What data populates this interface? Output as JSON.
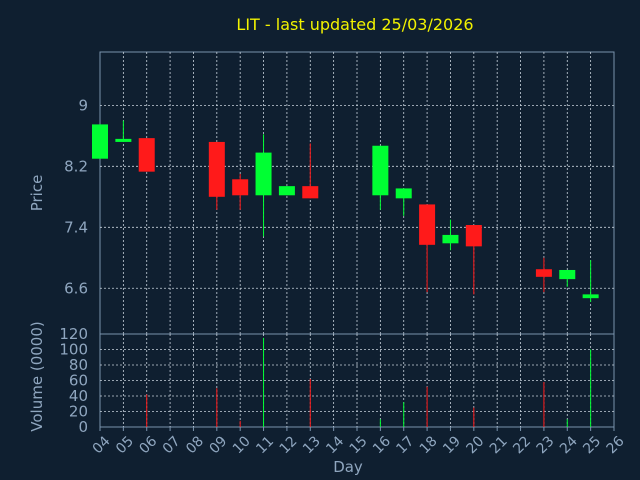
{
  "chart_data": {
    "type": "candlestick",
    "title": "LIT - last updated 25/03/2026",
    "xlabel": "Day",
    "price_panel": {
      "ylabel": "Price",
      "yticks": [
        "6.6",
        "7.4",
        "8.2",
        "9"
      ],
      "ylim": [
        6.0,
        9.7
      ],
      "grid": true
    },
    "volume_panel": {
      "ylabel": "Volume (0000)",
      "yticks": [
        "0",
        "20",
        "40",
        "60",
        "80",
        "100",
        "120"
      ],
      "ylim": [
        0,
        120
      ],
      "grid": true
    },
    "x_ticks": [
      "04",
      "05",
      "06",
      "07",
      "08",
      "09",
      "10",
      "11",
      "12",
      "13",
      "14",
      "15",
      "16",
      "17",
      "18",
      "19",
      "20",
      "21",
      "22",
      "23",
      "24",
      "25",
      "26"
    ],
    "candles": [
      {
        "day": 4,
        "open": 8.3,
        "close": 8.75,
        "high": 8.75,
        "low": 8.3,
        "volume": 0
      },
      {
        "day": 5,
        "open": 8.52,
        "close": 8.56,
        "high": 8.8,
        "low": 8.52,
        "volume": 0
      },
      {
        "day": 6,
        "open": 8.57,
        "close": 8.13,
        "high": 8.57,
        "low": 8.13,
        "volume": 42
      },
      {
        "day": 9,
        "open": 8.52,
        "close": 7.8,
        "high": 8.52,
        "low": 7.63,
        "volume": 50
      },
      {
        "day": 10,
        "open": 8.03,
        "close": 7.82,
        "high": 8.1,
        "low": 7.63,
        "volume": 8
      },
      {
        "day": 11,
        "open": 7.82,
        "close": 8.38,
        "high": 8.62,
        "low": 7.28,
        "volume": 115
      },
      {
        "day": 12,
        "open": 7.82,
        "close": 7.94,
        "high": 7.94,
        "low": 7.82,
        "volume": 0
      },
      {
        "day": 13,
        "open": 7.94,
        "close": 7.78,
        "high": 8.5,
        "low": 7.78,
        "volume": 62
      },
      {
        "day": 16,
        "open": 7.82,
        "close": 8.47,
        "high": 8.47,
        "low": 7.63,
        "volume": 10
      },
      {
        "day": 17,
        "open": 7.78,
        "close": 7.91,
        "high": 7.91,
        "low": 7.55,
        "volume": 32
      },
      {
        "day": 18,
        "open": 7.7,
        "close": 7.17,
        "high": 7.7,
        "low": 6.55,
        "volume": 52
      },
      {
        "day": 19,
        "open": 7.19,
        "close": 7.3,
        "high": 7.5,
        "low": 7.1,
        "volume": 0
      },
      {
        "day": 20,
        "open": 7.43,
        "close": 7.15,
        "high": 7.43,
        "low": 6.52,
        "volume": 25
      },
      {
        "day": 23,
        "open": 6.85,
        "close": 6.75,
        "high": 7.0,
        "low": 6.55,
        "volume": 58
      },
      {
        "day": 24,
        "open": 6.72,
        "close": 6.84,
        "high": 6.84,
        "low": 6.62,
        "volume": 10
      },
      {
        "day": 25,
        "open": 6.47,
        "close": 6.52,
        "high": 6.97,
        "low": 6.42,
        "volume": 100
      }
    ],
    "colors": {
      "background": "#0f1f30",
      "axis": "#7a93ad",
      "grid": "#c8d2dc",
      "label": "#8fa6bf",
      "title": "#f2f200",
      "up": "#00ff33",
      "down": "#ff1a1a"
    }
  }
}
